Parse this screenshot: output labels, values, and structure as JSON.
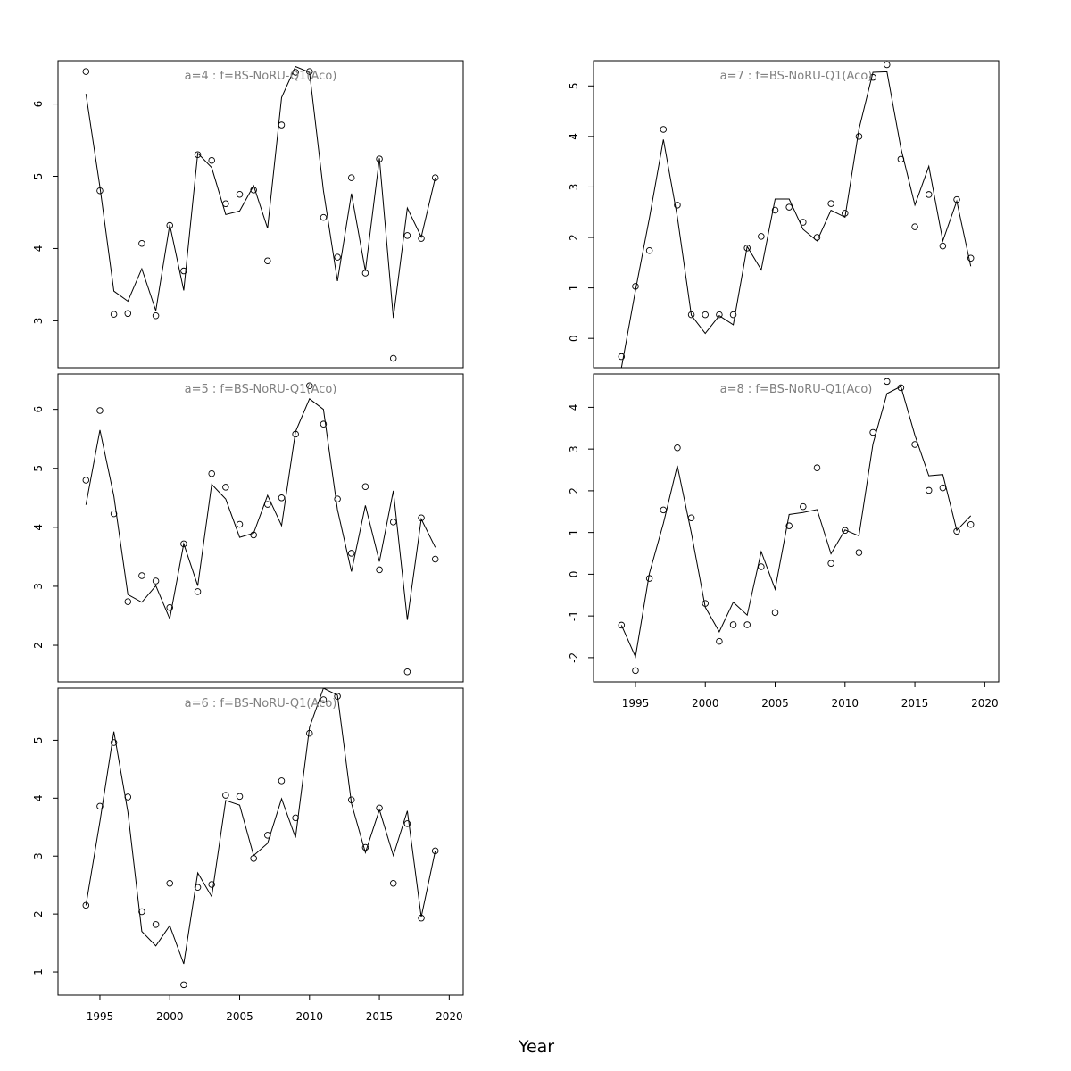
{
  "figure": {
    "xlabel": "Year"
  },
  "chart_data": [
    {
      "type": "line",
      "title": "a=4  :  f=BS-NoRU-Q1(Aco)",
      "xlabel": "",
      "ylabel": "",
      "xlim": [
        1992,
        2021
      ],
      "ylim": [
        2.35,
        6.6
      ],
      "yticks": [
        3,
        4,
        5,
        6
      ],
      "xticks": [],
      "x": [
        1994,
        1995,
        1996,
        1997,
        1998,
        1999,
        2000,
        2001,
        2002,
        2003,
        2004,
        2005,
        2006,
        2007,
        2008,
        2009,
        2010,
        2011,
        2012,
        2013,
        2014,
        2015,
        2016,
        2017,
        2018,
        2019
      ],
      "series": [
        {
          "role": "observed",
          "marker": "circle",
          "values": [
            6.45,
            4.8,
            3.09,
            3.1,
            4.07,
            3.07,
            4.32,
            3.69,
            5.3,
            5.22,
            4.62,
            4.75,
            4.81,
            3.83,
            5.71,
            6.44,
            6.45,
            4.43,
            3.88,
            4.98,
            3.66,
            5.24,
            2.48,
            4.18,
            4.14,
            4.98
          ]
        },
        {
          "role": "fitted",
          "marker": "line",
          "values": [
            6.14,
            4.85,
            3.41,
            3.27,
            3.72,
            3.14,
            4.33,
            3.42,
            5.32,
            5.12,
            4.47,
            4.52,
            4.87,
            4.28,
            6.09,
            6.52,
            6.44,
            4.8,
            3.55,
            4.76,
            3.69,
            5.25,
            3.04,
            4.56,
            4.16,
            4.98
          ]
        }
      ]
    },
    {
      "type": "line",
      "title": "a=5  :  f=BS-NoRU-Q1(Aco)",
      "xlabel": "",
      "ylabel": "",
      "xlim": [
        1992,
        2021
      ],
      "ylim": [
        1.38,
        6.6
      ],
      "yticks": [
        2,
        3,
        4,
        5,
        6
      ],
      "xticks": [],
      "x": [
        1994,
        1995,
        1996,
        1997,
        1998,
        1999,
        2000,
        2001,
        2002,
        2003,
        2004,
        2005,
        2006,
        2007,
        2008,
        2009,
        2010,
        2011,
        2012,
        2013,
        2014,
        2015,
        2016,
        2017,
        2018,
        2019
      ],
      "series": [
        {
          "role": "observed",
          "marker": "circle",
          "values": [
            4.8,
            5.98,
            4.23,
            2.74,
            3.18,
            3.09,
            2.64,
            3.72,
            2.91,
            4.91,
            4.68,
            4.05,
            3.87,
            4.39,
            4.5,
            5.58,
            6.4,
            5.75,
            4.48,
            3.56,
            4.69,
            3.28,
            4.09,
            1.55,
            4.16,
            3.46
          ]
        },
        {
          "role": "fitted",
          "marker": "line",
          "values": [
            4.38,
            5.65,
            4.53,
            2.86,
            2.73,
            3.01,
            2.45,
            3.72,
            3.01,
            4.73,
            4.48,
            3.83,
            3.9,
            4.54,
            4.03,
            5.62,
            6.18,
            6.0,
            4.3,
            3.25,
            4.37,
            3.42,
            4.62,
            2.43,
            4.14,
            3.66
          ]
        }
      ]
    },
    {
      "type": "line",
      "title": "a=6  :  f=BS-NoRU-Q1(Aco)",
      "xlabel": "",
      "ylabel": "",
      "xlim": [
        1992,
        2021
      ],
      "ylim": [
        0.6,
        5.9
      ],
      "yticks": [
        1,
        2,
        3,
        4,
        5
      ],
      "xticks": [
        1995,
        2000,
        2005,
        2010,
        2015,
        2020
      ],
      "x": [
        1994,
        1995,
        1996,
        1997,
        1998,
        1999,
        2000,
        2001,
        2002,
        2003,
        2004,
        2005,
        2006,
        2007,
        2008,
        2009,
        2010,
        2011,
        2012,
        2013,
        2014,
        2015,
        2016,
        2017,
        2018,
        2019
      ],
      "series": [
        {
          "role": "observed",
          "marker": "circle",
          "values": [
            2.15,
            3.86,
            4.96,
            4.02,
            2.04,
            1.82,
            2.53,
            0.78,
            2.46,
            2.51,
            4.05,
            4.03,
            2.96,
            3.36,
            4.3,
            3.66,
            5.12,
            5.7,
            5.76,
            3.97,
            3.15,
            3.83,
            2.53,
            3.56,
            1.93,
            3.09
          ]
        },
        {
          "role": "fitted",
          "marker": "line",
          "values": [
            2.15,
            3.6,
            5.15,
            3.76,
            1.7,
            1.45,
            1.8,
            1.14,
            2.71,
            2.3,
            3.96,
            3.88,
            3.01,
            3.22,
            3.99,
            3.32,
            5.22,
            5.9,
            5.78,
            3.91,
            3.06,
            3.8,
            3.01,
            3.78,
            1.95,
            3.09
          ]
        }
      ]
    },
    {
      "type": "line",
      "title": "a=7  :  f=BS-NoRU-Q1(Aco)",
      "xlabel": "",
      "ylabel": "",
      "xlim": [
        1992,
        2021
      ],
      "ylim": [
        -0.58,
        5.5
      ],
      "yticks": [
        0,
        1,
        2,
        3,
        4,
        5
      ],
      "xticks": [],
      "x": [
        1994,
        1995,
        1996,
        1997,
        1998,
        1999,
        2000,
        2001,
        2002,
        2003,
        2004,
        2005,
        2006,
        2007,
        2008,
        2009,
        2010,
        2011,
        2012,
        2013,
        2014,
        2015,
        2016,
        2017,
        2018,
        2019
      ],
      "series": [
        {
          "role": "observed",
          "marker": "circle",
          "values": [
            -0.36,
            1.03,
            1.74,
            4.14,
            2.64,
            0.47,
            0.47,
            0.47,
            0.47,
            1.79,
            2.02,
            2.54,
            2.6,
            2.3,
            2.0,
            2.67,
            2.48,
            4.0,
            5.17,
            5.42,
            3.55,
            2.21,
            2.85,
            1.83,
            2.75,
            1.59
          ]
        },
        {
          "role": "fitted",
          "marker": "line",
          "values": [
            -0.58,
            0.95,
            2.38,
            3.94,
            2.41,
            0.46,
            0.1,
            0.45,
            0.27,
            1.82,
            1.36,
            2.76,
            2.76,
            2.16,
            1.93,
            2.54,
            2.4,
            4.14,
            5.27,
            5.28,
            3.77,
            2.64,
            3.41,
            1.93,
            2.72,
            1.43
          ]
        }
      ]
    },
    {
      "type": "line",
      "title": "a=8  :  f=BS-NoRU-Q1(Aco)",
      "xlabel": "",
      "ylabel": "",
      "xlim": [
        1992,
        2021
      ],
      "ylim": [
        -2.58,
        4.8
      ],
      "yticks": [
        -2,
        -1,
        0,
        1,
        2,
        3,
        4
      ],
      "xticks": [
        1995,
        2000,
        2005,
        2010,
        2015,
        2020
      ],
      "x": [
        1994,
        1995,
        1996,
        1997,
        1998,
        1999,
        2000,
        2001,
        2002,
        2003,
        2004,
        2005,
        2006,
        2007,
        2008,
        2009,
        2010,
        2011,
        2012,
        2013,
        2014,
        2015,
        2016,
        2017,
        2018,
        2019
      ],
      "series": [
        {
          "role": "observed",
          "marker": "circle",
          "values": [
            -1.22,
            -2.31,
            -0.1,
            1.54,
            3.03,
            1.35,
            -0.7,
            -1.61,
            -1.21,
            -1.21,
            0.18,
            -0.92,
            1.16,
            1.62,
            2.55,
            0.26,
            1.05,
            0.52,
            3.4,
            4.62,
            4.47,
            3.11,
            2.01,
            2.07,
            1.03,
            1.19
          ]
        },
        {
          "role": "fitted",
          "marker": "line",
          "values": [
            -1.22,
            -1.98,
            0.02,
            1.22,
            2.6,
            0.99,
            -0.79,
            -1.38,
            -0.67,
            -0.98,
            0.54,
            -0.36,
            1.43,
            1.48,
            1.55,
            0.49,
            1.06,
            0.92,
            3.12,
            4.33,
            4.5,
            3.33,
            2.36,
            2.39,
            1.05,
            1.4
          ]
        }
      ]
    }
  ]
}
